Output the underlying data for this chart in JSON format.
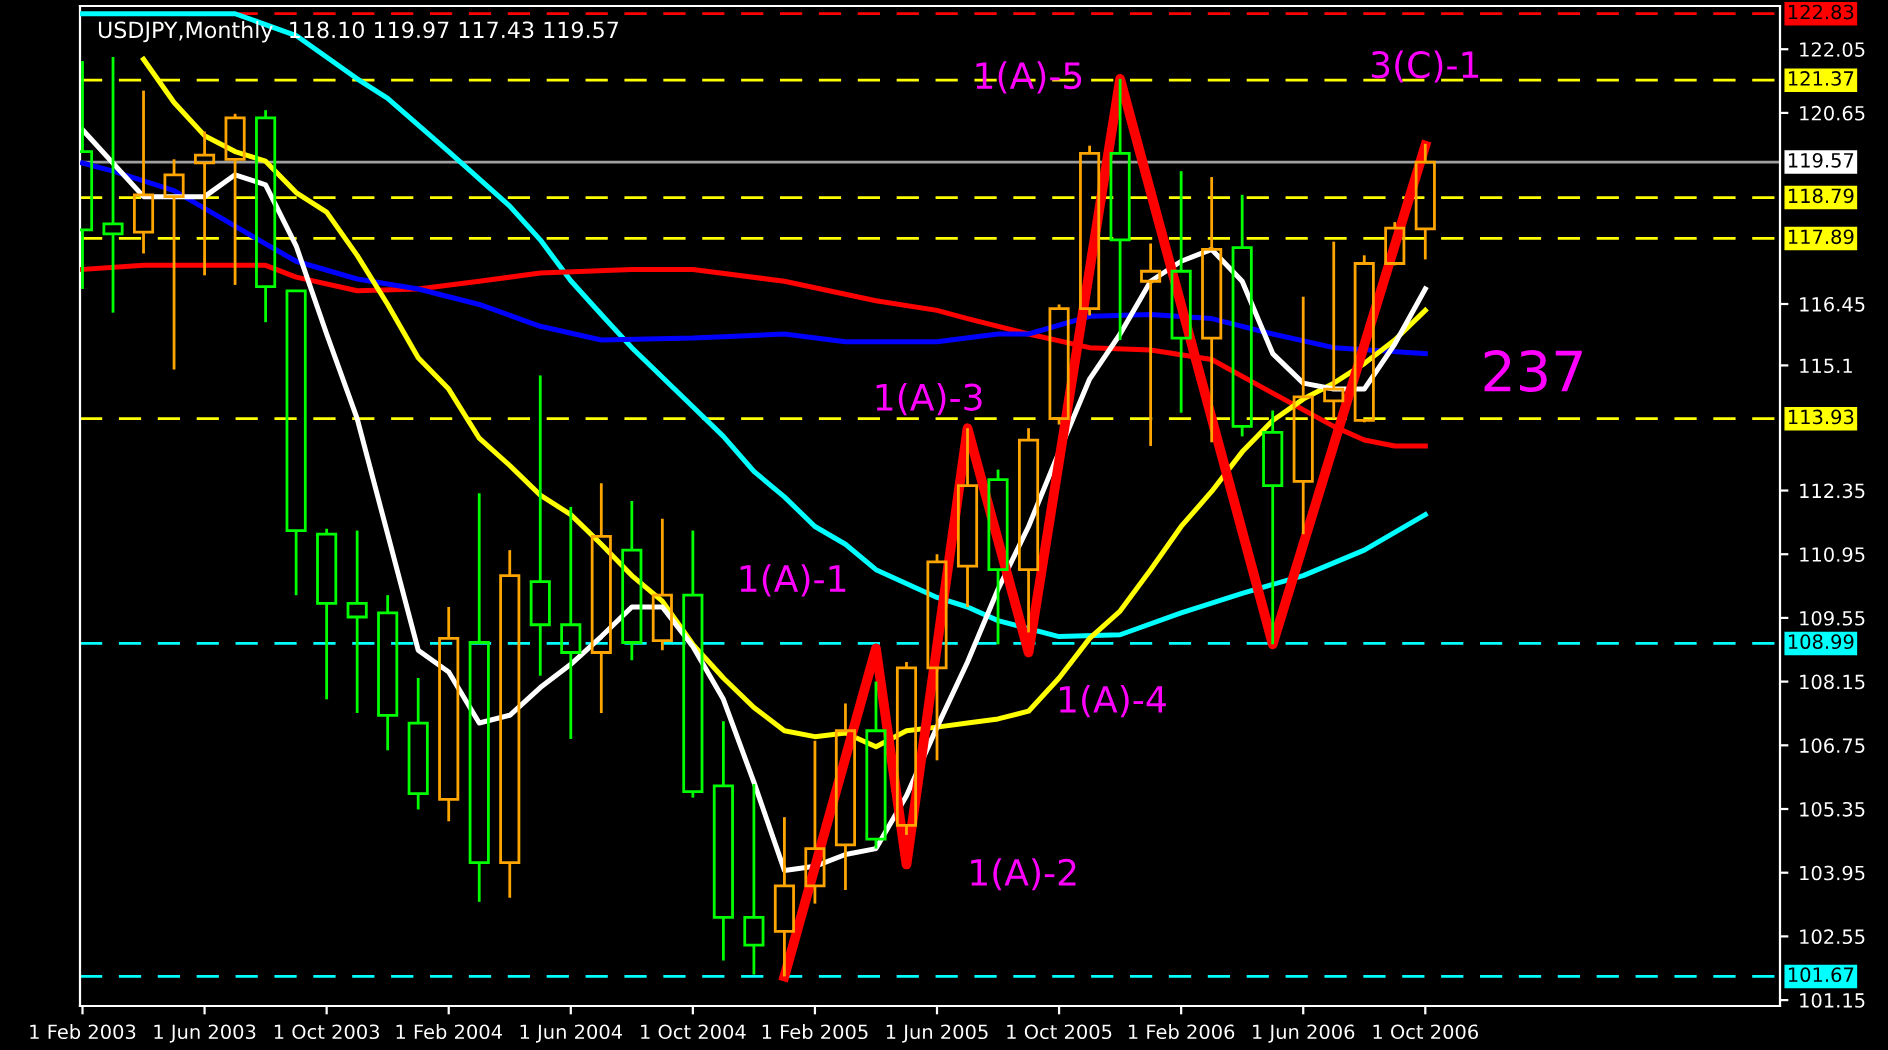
{
  "chart_data": {
    "type": "candlestick",
    "title": "USDJPY,Monthly  118.10 119.97 117.43 119.57",
    "x": [
      "2003-02",
      "2003-03",
      "2003-04",
      "2003-05",
      "2003-06",
      "2003-07",
      "2003-08",
      "2003-09",
      "2003-10",
      "2003-11",
      "2003-12",
      "2004-01",
      "2004-02",
      "2004-03",
      "2004-04",
      "2004-05",
      "2004-06",
      "2004-07",
      "2004-08",
      "2004-09",
      "2004-10",
      "2004-11",
      "2004-12",
      "2005-01",
      "2005-02",
      "2005-03",
      "2005-04",
      "2005-05",
      "2005-06",
      "2005-07",
      "2005-08",
      "2005-09",
      "2005-10",
      "2005-11",
      "2005-12",
      "2006-01",
      "2006-02",
      "2006-03",
      "2006-04",
      "2006-05",
      "2006-06",
      "2006-07",
      "2006-08",
      "2006-09",
      "2006-10"
    ],
    "ohlc": [
      [
        119.8,
        121.79,
        116.78,
        118.08
      ],
      [
        118.21,
        121.88,
        116.26,
        117.99
      ],
      [
        118.03,
        121.14,
        117.56,
        118.85
      ],
      [
        118.81,
        119.63,
        115.01,
        119.29
      ],
      [
        119.55,
        120.24,
        117.08,
        119.72
      ],
      [
        119.63,
        120.63,
        116.87,
        120.54
      ],
      [
        120.54,
        120.71,
        116.05,
        116.83
      ],
      [
        116.74,
        116.74,
        110.05,
        111.47
      ],
      [
        111.39,
        111.51,
        107.76,
        109.87
      ],
      [
        109.87,
        111.47,
        107.46,
        109.57
      ],
      [
        109.66,
        110.05,
        106.64,
        107.41
      ],
      [
        107.24,
        108.23,
        105.34,
        105.69
      ],
      [
        105.56,
        109.79,
        105.08,
        109.1
      ],
      [
        109.01,
        112.29,
        103.31,
        104.17
      ],
      [
        104.17,
        111.04,
        103.4,
        110.48
      ],
      [
        110.35,
        114.88,
        108.28,
        109.4
      ],
      [
        109.4,
        111.99,
        106.89,
        108.79
      ],
      [
        108.79,
        112.51,
        107.46,
        111.34
      ],
      [
        111.04,
        112.12,
        108.62,
        109.01
      ],
      [
        109.05,
        111.73,
        108.84,
        110.05
      ],
      [
        110.05,
        111.47,
        105.6,
        105.73
      ],
      [
        105.86,
        107.28,
        102.02,
        102.97
      ],
      [
        102.97,
        105.9,
        101.71,
        102.36
      ],
      [
        102.66,
        105.17,
        101.67,
        103.66
      ],
      [
        103.66,
        106.85,
        103.27,
        104.48
      ],
      [
        104.56,
        107.67,
        103.57,
        107.07
      ],
      [
        107.07,
        108.15,
        104.48,
        104.69
      ],
      [
        104.99,
        108.58,
        104.78,
        108.45
      ],
      [
        108.45,
        110.95,
        106.42,
        110.78
      ],
      [
        110.69,
        113.72,
        109.79,
        112.46
      ],
      [
        112.59,
        112.81,
        108.97,
        110.61
      ],
      [
        110.61,
        113.72,
        109.23,
        113.46
      ],
      [
        113.93,
        116.44,
        113.8,
        116.35
      ],
      [
        116.35,
        119.93,
        116.2,
        119.76
      ],
      [
        119.76,
        121.4,
        115.66,
        117.86
      ],
      [
        116.95,
        117.78,
        113.33,
        117.17
      ],
      [
        117.17,
        119.37,
        114.06,
        115.7
      ],
      [
        115.7,
        119.24,
        113.41,
        117.65
      ],
      [
        117.69,
        118.85,
        113.54,
        113.76
      ],
      [
        113.63,
        114.11,
        108.97,
        112.46
      ],
      [
        112.55,
        116.61,
        111.39,
        114.41
      ],
      [
        114.32,
        117.82,
        113.93,
        114.58
      ],
      [
        113.89,
        117.52,
        113.85,
        117.34
      ],
      [
        117.34,
        118.25,
        117.3,
        118.12
      ],
      [
        118.1,
        119.97,
        117.43,
        119.57
      ]
    ],
    "colors": [
      "#00ff00",
      "#00ff00",
      "#ffa500",
      "#ffa500",
      "#ffa500",
      "#ffa500",
      "#00ff00",
      "#00ff00",
      "#00ff00",
      "#00ff00",
      "#00ff00",
      "#00ff00",
      "#ffa500",
      "#00ff00",
      "#ffa500",
      "#00ff00",
      "#00ff00",
      "#ffa500",
      "#00ff00",
      "#ffa500",
      "#00ff00",
      "#00ff00",
      "#00ff00",
      "#ffa500",
      "#ffa500",
      "#ffa500",
      "#00ff00",
      "#ffa500",
      "#ffa500",
      "#ffa500",
      "#00ff00",
      "#ffa500",
      "#ffa500",
      "#ffa500",
      "#00ff00",
      "#ffa500",
      "#00ff00",
      "#ffa500",
      "#00ff00",
      "#00ff00",
      "#ffa500",
      "#ffa500",
      "#ffa500",
      "#ffa500",
      "#ffa500"
    ],
    "series": [
      {
        "type": "line",
        "color": "#00ffff",
        "x": [
          "2003-02",
          "2003-07",
          "2003-09",
          "2003-11",
          "2003-12",
          "2004-02",
          "2004-04",
          "2004-05",
          "2004-06",
          "2004-07",
          "2004-08",
          "2004-10",
          "2004-11",
          "2004-12",
          "2005-01",
          "2005-02",
          "2005-03",
          "2005-04",
          "2005-06",
          "2005-07",
          "2005-08",
          "2005-10",
          "2005-12",
          "2006-02",
          "2006-04",
          "2006-06",
          "2006-08",
          "2006-10"
        ],
        "values": [
          122.83,
          122.83,
          122.35,
          121.4,
          120.97,
          119.8,
          118.6,
          117.86,
          116.96,
          116.22,
          115.49,
          114.19,
          113.54,
          112.77,
          112.21,
          111.56,
          111.17,
          110.61,
          110.0,
          109.79,
          109.49,
          109.14,
          109.18,
          109.66,
          110.09,
          110.48,
          111.04,
          111.82
        ]
      },
      {
        "type": "line",
        "color": "#ff0000",
        "x": [
          "2003-02",
          "2003-04",
          "2003-08",
          "2003-09",
          "2003-11",
          "2004-01",
          "2004-03",
          "2004-05",
          "2004-08",
          "2004-10",
          "2005-01",
          "2005-04",
          "2005-06",
          "2005-07",
          "2005-09",
          "2005-11",
          "2006-01",
          "2006-03",
          "2006-05",
          "2006-07",
          "2006-08",
          "2006-09",
          "2006-10"
        ],
        "values": [
          117.21,
          117.3,
          117.3,
          117.04,
          116.74,
          116.78,
          116.95,
          117.13,
          117.21,
          117.21,
          116.95,
          116.52,
          116.31,
          116.13,
          115.79,
          115.49,
          115.44,
          115.23,
          114.49,
          113.76,
          113.46,
          113.33,
          113.33
        ]
      },
      {
        "type": "line",
        "color": "#0000ff",
        "x": [
          "2003-02",
          "2003-03",
          "2003-05",
          "2003-07",
          "2003-08",
          "2003-09",
          "2003-11",
          "2004-01",
          "2004-03",
          "2004-05",
          "2004-07",
          "2004-10",
          "2005-01",
          "2005-03",
          "2005-06",
          "2005-08",
          "2005-09",
          "2005-11",
          "2006-01",
          "2006-03",
          "2006-05",
          "2006-07",
          "2006-10"
        ],
        "values": [
          119.55,
          119.37,
          118.94,
          118.16,
          117.77,
          117.39,
          117.0,
          116.78,
          116.44,
          115.96,
          115.66,
          115.7,
          115.79,
          115.62,
          115.62,
          115.79,
          115.79,
          116.18,
          116.22,
          116.13,
          115.79,
          115.49,
          115.36
        ]
      },
      {
        "type": "line",
        "color": "#ffff00",
        "x": [
          "2003-04",
          "2003-05",
          "2003-06",
          "2003-07",
          "2003-08",
          "2003-09",
          "2003-10",
          "2003-11",
          "2003-12",
          "2004-01",
          "2004-02",
          "2004-03",
          "2004-04",
          "2004-05",
          "2004-06",
          "2004-07",
          "2004-08",
          "2004-09",
          "2004-10",
          "2004-11",
          "2004-12",
          "2005-01",
          "2005-02",
          "2005-03",
          "2005-04",
          "2005-05",
          "2005-06",
          "2005-07",
          "2005-08",
          "2005-09",
          "2005-10",
          "2005-11",
          "2005-12",
          "2006-01",
          "2006-02",
          "2006-03",
          "2006-04",
          "2006-05",
          "2006-06",
          "2006-07",
          "2006-08",
          "2006-09",
          "2006-10"
        ],
        "values": [
          121.83,
          120.88,
          120.15,
          119.8,
          119.59,
          118.9,
          118.47,
          117.52,
          116.44,
          115.27,
          114.58,
          113.5,
          112.9,
          112.25,
          111.82,
          111.17,
          110.48,
          109.92,
          108.97,
          108.23,
          107.58,
          107.07,
          106.94,
          107.02,
          106.72,
          107.07,
          107.15,
          107.24,
          107.33,
          107.5,
          108.23,
          109.1,
          109.7,
          110.61,
          111.56,
          112.33,
          113.2,
          113.89,
          114.36,
          114.71,
          115.14,
          115.66,
          116.31
        ]
      },
      {
        "type": "line",
        "color": "#ffffff",
        "x": [
          "2003-02",
          "2003-04",
          "2003-06",
          "2003-07",
          "2003-08",
          "2003-09",
          "2003-10",
          "2003-11",
          "2003-12",
          "2004-01",
          "2004-02",
          "2004-03",
          "2004-04",
          "2004-05",
          "2004-06",
          "2004-07",
          "2004-08",
          "2004-09",
          "2004-10",
          "2004-11",
          "2004-12",
          "2005-01",
          "2005-02",
          "2005-03",
          "2005-04",
          "2005-05",
          "2005-06",
          "2005-07",
          "2005-08",
          "2005-09",
          "2005-10",
          "2005-11",
          "2005-12",
          "2006-01",
          "2006-02",
          "2006-03",
          "2006-04",
          "2006-05",
          "2006-06",
          "2006-07",
          "2006-08",
          "2006-09",
          "2006-10"
        ],
        "values": [
          120.28,
          118.81,
          118.81,
          119.29,
          119.07,
          117.73,
          115.79,
          113.93,
          111.39,
          108.84,
          108.36,
          107.24,
          107.41,
          108.02,
          108.53,
          109.14,
          109.79,
          109.79,
          108.92,
          107.76,
          105.94,
          104.0,
          104.09,
          104.35,
          104.48,
          105.64,
          107.15,
          108.58,
          110.18,
          111.56,
          113.2,
          114.8,
          115.79,
          116.95,
          117.39,
          117.65,
          116.95,
          115.36,
          114.71,
          114.58,
          114.58,
          115.57,
          116.78
        ]
      },
      {
        "type": "line",
        "color": "#ff0000",
        "x": [
          "2005-01",
          "2005-04",
          "2005-05",
          "2005-07",
          "2005-09",
          "2005-12",
          "2006-05",
          "2006-10"
        ],
        "values": [
          101.67,
          108.88,
          104.13,
          113.72,
          108.79,
          121.4,
          108.97,
          119.93
        ]
      }
    ],
    "annotations": [
      {
        "text": "1(A)-1",
        "x": "2005-04",
        "y": 108.88
      },
      {
        "text": "1(A)-2",
        "x": "2005-05",
        "y": 104.13
      },
      {
        "text": "1(A)-3",
        "x": "2005-07",
        "y": 113.72
      },
      {
        "text": "1(A)-4",
        "x": "2005-09",
        "y": 108.79
      },
      {
        "text": "1(A)-5",
        "x": "2005-12",
        "y": 121.4
      },
      {
        "text": "3(C)-1",
        "x": "2006-10",
        "y": 119.93
      },
      "237"
    ],
    "ref_lines": [
      {
        "axis": "y",
        "value": 122.83,
        "label": "122.83",
        "color": "#ff0000",
        "line_style": "dashed"
      },
      {
        "axis": "y",
        "value": 121.37,
        "label": "121.37",
        "color": "#ffff00",
        "line_style": "dashed"
      },
      {
        "axis": "y",
        "value": 119.57,
        "label": "119.57",
        "color": "#a0a0a0",
        "line_style": "solid"
      },
      {
        "axis": "y",
        "value": 118.79,
        "label": "118.79",
        "color": "#ffff00",
        "line_style": "dashed"
      },
      {
        "axis": "y",
        "value": 117.89,
        "label": "117.89",
        "color": "#ffff00",
        "line_style": "dashed"
      },
      {
        "axis": "y",
        "value": 113.93,
        "label": "113.93",
        "color": "#ffff00",
        "line_style": "dashed"
      },
      {
        "axis": "y",
        "value": 108.99,
        "label": "108.99",
        "color": "#00ffff",
        "line_style": "dashed"
      },
      {
        "axis": "y",
        "value": 101.67,
        "label": "101.67",
        "color": "#00ffff",
        "line_style": "dashed"
      }
    ],
    "xlim": [
      "2003-01-29",
      "2007-09-20"
    ],
    "xticks": [
      {
        "value": "2003-02",
        "label": "1 Feb 2003"
      },
      {
        "value": "2003-06",
        "label": "1 Jun 2003"
      },
      {
        "value": "2003-10",
        "label": "1 Oct 2003"
      },
      {
        "value": "2004-02",
        "label": "1 Feb 2004"
      },
      {
        "value": "2004-06",
        "label": "1 Jun 2004"
      },
      {
        "value": "2004-10",
        "label": "1 Oct 2004"
      },
      {
        "value": "2005-02",
        "label": "1 Feb 2005"
      },
      {
        "value": "2005-06",
        "label": "1 Jun 2005"
      },
      {
        "value": "2005-10",
        "label": "1 Oct 2005"
      },
      {
        "value": "2006-02",
        "label": "1 Feb 2006"
      },
      {
        "value": "2006-06",
        "label": "1 Jun 2006"
      },
      {
        "value": "2006-10",
        "label": "1 Oct 2006"
      }
    ],
    "ylim": [
      101.02,
      123.0
    ],
    "yticks": [
      122.05,
      120.65,
      116.45,
      115.1,
      112.35,
      110.95,
      109.55,
      108.15,
      106.75,
      105.35,
      103.95,
      102.55,
      101.15
    ],
    "grid": false,
    "legend": false
  }
}
